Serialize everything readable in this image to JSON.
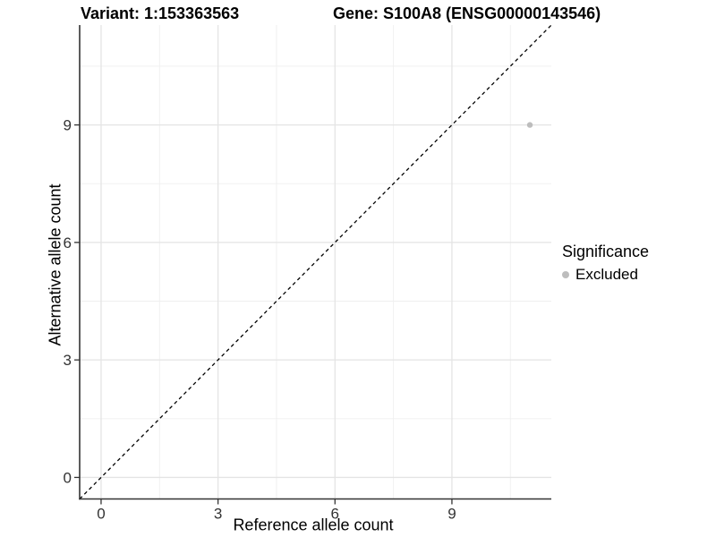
{
  "title": {
    "variant": "Variant: 1:153363563",
    "gene": "Gene: S100A8 (ENSG00000143546)"
  },
  "axes": {
    "x_label": "Reference allele count",
    "y_label": "Alternative allele count"
  },
  "legend": {
    "title": "Significance",
    "items": [
      {
        "label": "Excluded",
        "color": "#bdbdbd"
      }
    ]
  },
  "colors": {
    "point": "#bdbdbd",
    "axis": "#333333",
    "tick_text": "#333333",
    "grid_major": "#e4e4e4",
    "grid_minor": "#efefef",
    "reference_line": "#000000",
    "background": "#ffffff"
  },
  "chart_data": {
    "type": "scatter",
    "title": "Variant: 1:153363563 | Gene: S100A8 (ENSG00000143546)",
    "xlabel": "Reference allele count",
    "ylabel": "Alternative allele count",
    "xlim": [
      -0.55,
      11.55
    ],
    "ylim": [
      -0.55,
      11.55
    ],
    "x_ticks": [
      0,
      3,
      6,
      9
    ],
    "y_ticks": [
      0,
      3,
      6,
      9
    ],
    "x_minor_ticks": [
      1.5,
      4.5,
      7.5,
      10.5
    ],
    "y_minor_ticks": [
      1.5,
      4.5,
      7.5,
      10.5
    ],
    "grid": true,
    "legend_position": "right",
    "reference_line": {
      "type": "identity",
      "slope": 1,
      "intercept": 0,
      "style": "dashed",
      "color": "#000000"
    },
    "series": [
      {
        "name": "Excluded",
        "color": "#bdbdbd",
        "marker": "circle",
        "size": 3.2,
        "points": [
          [
            11,
            9
          ]
        ]
      }
    ]
  }
}
